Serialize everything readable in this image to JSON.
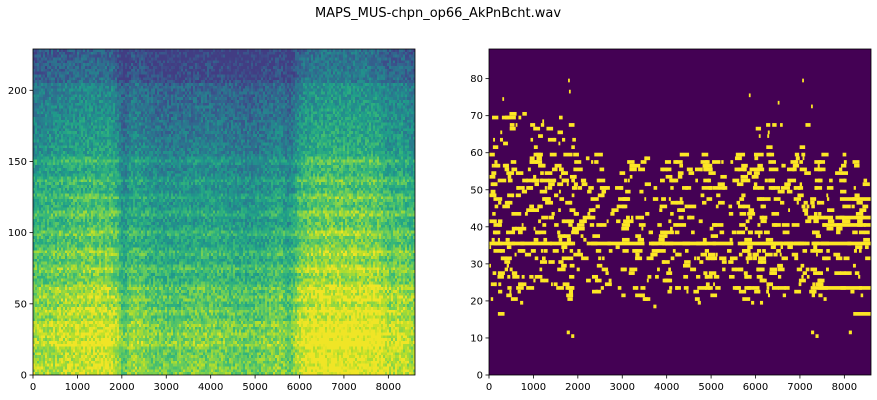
{
  "figure": {
    "title": "MAPS_MUS-chpn_op66_AkPnBcht.wav"
  },
  "chart_data": [
    {
      "type": "heatmap",
      "title": "",
      "xlabel": "",
      "ylabel": "",
      "xlim": [
        0,
        8600
      ],
      "ylim": [
        0,
        229
      ],
      "xticks": [
        0,
        1000,
        2000,
        3000,
        4000,
        5000,
        6000,
        7000,
        8000
      ],
      "yticks": [
        0,
        50,
        100,
        150,
        200
      ],
      "colormap": "viridis",
      "grid": false
    },
    {
      "type": "heatmap",
      "title": "",
      "xlabel": "",
      "ylabel": "",
      "xlim": [
        0,
        8600
      ],
      "ylim": [
        0,
        88
      ],
      "xticks": [
        0,
        1000,
        2000,
        3000,
        4000,
        5000,
        6000,
        7000,
        8000
      ],
      "yticks": [
        0,
        10,
        20,
        30,
        40,
        50,
        60,
        70,
        80
      ],
      "background_color": "#440154",
      "note_color": "#fde725",
      "grid": false
    }
  ]
}
